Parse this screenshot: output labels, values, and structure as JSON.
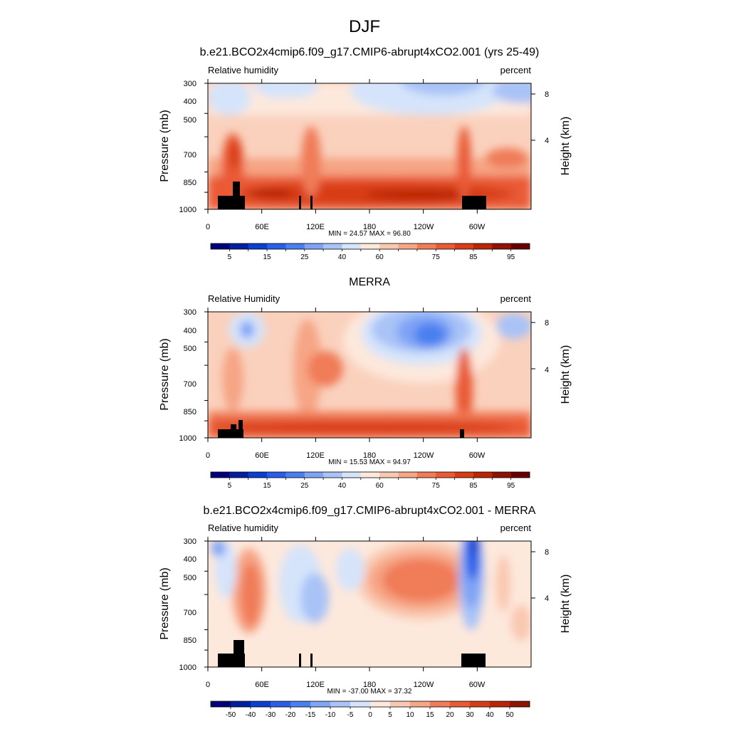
{
  "page": {
    "title": "DJF"
  },
  "x_tick_labels": [
    "0",
    "60E",
    "120E",
    "180",
    "120W",
    "60W"
  ],
  "y_tick_labels": [
    "300",
    "400",
    "500",
    "700",
    "850",
    "1000"
  ],
  "y_axis_label": "Pressure (mb)",
  "height_axis_label": "Height (km)",
  "height_tick_labels": [
    "8",
    "4"
  ],
  "chart_data": [
    {
      "type": "heatmap",
      "title": "b.e21.BCO2x4cmip6.f09_g17.CMIP6-abrupt4xCO2.001 (yrs 25-49)",
      "left_label": "Relative humidity",
      "right_label": "percent",
      "stats_text": "MIN =  24.57  MAX =  96.80",
      "min": 24.57,
      "max": 96.8,
      "xlim": [
        0,
        360
      ],
      "ylim": [
        1000,
        300
      ],
      "colorbar": {
        "levels": [
          5,
          10,
          15,
          20,
          25,
          30,
          40,
          50,
          60,
          65,
          70,
          75,
          80,
          85,
          90,
          95
        ],
        "labels": [
          "5",
          "15",
          "25",
          "40",
          "60",
          "75",
          "85",
          "95"
        ],
        "colors": [
          "#00007a",
          "#0020a0",
          "#0a3fd2",
          "#2a5ee8",
          "#4a7ff0",
          "#7fa3f5",
          "#a9c3f7",
          "#d5e4fb",
          "#fde8dc",
          "#f9c8b0",
          "#f6a585",
          "#f07c58",
          "#e95a35",
          "#d83c17",
          "#bb2506",
          "#901203",
          "#680000"
        ]
      },
      "height_axis": {
        "label": "Height (km)",
        "ticks": [
          8,
          4
        ]
      }
    },
    {
      "type": "heatmap",
      "title": "MERRA",
      "left_label": "Relative Humidity",
      "right_label": "percent",
      "stats_text": "MIN =  15.53  MAX =  94.97",
      "min": 15.53,
      "max": 94.97,
      "xlim": [
        0,
        360
      ],
      "ylim": [
        1000,
        300
      ],
      "colorbar": {
        "levels": [
          5,
          10,
          15,
          20,
          25,
          30,
          40,
          50,
          60,
          65,
          70,
          75,
          80,
          85,
          90,
          95
        ],
        "labels": [
          "5",
          "15",
          "25",
          "40",
          "60",
          "75",
          "85",
          "95"
        ],
        "colors": [
          "#00007a",
          "#0020a0",
          "#0a3fd2",
          "#2a5ee8",
          "#4a7ff0",
          "#7fa3f5",
          "#a9c3f7",
          "#d5e4fb",
          "#fde8dc",
          "#f9c8b0",
          "#f6a585",
          "#f07c58",
          "#e95a35",
          "#d83c17",
          "#bb2506",
          "#901203",
          "#680000"
        ]
      },
      "height_axis": {
        "label": "Height (km)",
        "ticks": [
          8,
          4
        ]
      }
    },
    {
      "type": "heatmap",
      "title": "b.e21.BCO2x4cmip6.f09_g17.CMIP6-abrupt4xCO2.001 - MERRA",
      "left_label": "Relative humidity",
      "right_label": "percent",
      "stats_text": "MIN = -37.00  MAX =  37.32",
      "min": -37.0,
      "max": 37.32,
      "xlim": [
        0,
        360
      ],
      "ylim": [
        1000,
        300
      ],
      "colorbar": {
        "levels": [
          -50,
          -40,
          -30,
          -20,
          -15,
          -10,
          -5,
          0,
          5,
          10,
          15,
          20,
          30,
          40,
          50
        ],
        "labels": [
          "-50",
          "-40",
          "-30",
          "-20",
          "-15",
          "-10",
          "-5",
          "0",
          "5",
          "10",
          "15",
          "20",
          "30",
          "40",
          "50"
        ],
        "colors": [
          "#00007a",
          "#0020a0",
          "#0a3fd2",
          "#2a5ee8",
          "#4a7ff0",
          "#7fa3f5",
          "#a9c3f7",
          "#d5e4fb",
          "#fde8dc",
          "#f9c8b0",
          "#f6a585",
          "#f07c58",
          "#e95a35",
          "#d83c17",
          "#bb2506",
          "#901203"
        ]
      },
      "height_axis": {
        "label": "Height (km)",
        "ticks": [
          8,
          4
        ]
      }
    }
  ]
}
